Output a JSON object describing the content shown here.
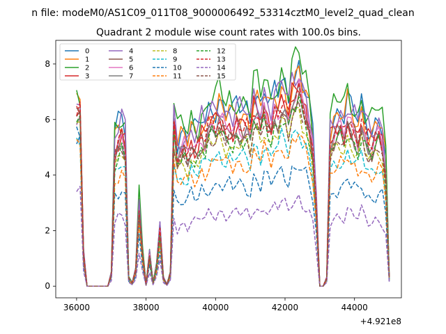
{
  "figure": {
    "suptitle": "n file: modeM0/AS1C09_011T08_9000006492_53314cztM0_level2_quad_clean",
    "title": "Quadrant 2 module wise count rates with 100.0s bins.",
    "offset_label": "+4.921e8"
  },
  "chart_data": {
    "type": "line",
    "xlim": [
      35400,
      45350
    ],
    "ylim": [
      -0.42,
      8.85
    ],
    "xticks": [
      36000,
      38000,
      40000,
      42000,
      44000
    ],
    "xtick_labels": [
      "36000",
      "38000",
      "40000",
      "42000",
      "44000"
    ],
    "yticks": [
      0,
      2,
      4,
      6,
      8
    ],
    "ytick_labels": [
      "0",
      "2",
      "4",
      "6",
      "8"
    ],
    "grid": false,
    "legend": {
      "placement": "top-left",
      "columns": 4
    },
    "x": [
      36000,
      36100,
      36200,
      36300,
      36400,
      36500,
      36600,
      36700,
      36800,
      36900,
      37000,
      37100,
      37200,
      37300,
      37400,
      37500,
      37600,
      37700,
      37800,
      37900,
      38000,
      38100,
      38200,
      38300,
      38400,
      38500,
      38600,
      38700,
      38800,
      38900,
      39000,
      39100,
      39200,
      39300,
      39400,
      39500,
      39600,
      39700,
      39800,
      39900,
      40000,
      40100,
      40200,
      40300,
      40400,
      40500,
      40600,
      40700,
      40800,
      40900,
      41000,
      41100,
      41200,
      41300,
      41400,
      41500,
      41600,
      41700,
      41800,
      41900,
      42000,
      42100,
      42200,
      42300,
      42400,
      42500,
      42600,
      42700,
      42800,
      42900,
      43000,
      43100,
      43200,
      43300,
      43400,
      43500,
      43600,
      43700,
      43800,
      43900,
      44000,
      44100,
      44200,
      44300,
      44400,
      44500,
      44600,
      44700,
      44800,
      44900,
      45000
    ],
    "series": [
      {
        "name": "0",
        "color": "#1f77b4",
        "dash": "solid",
        "level": 6.4,
        "start": 4.9,
        "amp": 0.55,
        "drop": 0.0
      },
      {
        "name": "1",
        "color": "#ff7f0e",
        "dash": "solid",
        "level": 6.2,
        "start": 6.6,
        "amp": 0.6,
        "drop": 0.0
      },
      {
        "name": "2",
        "color": "#2ca02c",
        "dash": "solid",
        "level": 6.7,
        "start": 6.9,
        "amp": 0.65,
        "drop": 0.0
      },
      {
        "name": "3",
        "color": "#d62728",
        "dash": "solid",
        "level": 5.8,
        "start": 6.5,
        "amp": 0.5,
        "drop": 0.0
      },
      {
        "name": "4",
        "color": "#9467bd",
        "dash": "solid",
        "level": 6.3,
        "start": 6.6,
        "amp": 0.55,
        "drop": 0.0
      },
      {
        "name": "5",
        "color": "#8c564b",
        "dash": "solid",
        "level": 5.6,
        "start": 6.2,
        "amp": 0.45,
        "drop": 0.0
      },
      {
        "name": "6",
        "color": "#e377c2",
        "dash": "solid",
        "level": 5.7,
        "start": 6.0,
        "amp": 0.45,
        "drop": 0.0
      },
      {
        "name": "7",
        "color": "#7f7f7f",
        "dash": "solid",
        "level": 5.5,
        "start": 6.0,
        "amp": 0.45,
        "drop": 0.0
      },
      {
        "name": "8",
        "color": "#bcbd22",
        "dash": "dashed",
        "level": 5.1,
        "start": 5.8,
        "amp": 0.4,
        "drop": 0.0
      },
      {
        "name": "9",
        "color": "#17becf",
        "dash": "dashed",
        "level": 4.6,
        "start": 5.0,
        "amp": 0.4,
        "drop": 0.0
      },
      {
        "name": "10",
        "color": "#1f77b4",
        "dash": "dashed",
        "level": 3.6,
        "start": 5.5,
        "amp": 0.4,
        "drop": 0.0
      },
      {
        "name": "11",
        "color": "#ff7f0e",
        "dash": "dashed",
        "level": 4.4,
        "start": 5.4,
        "amp": 0.35,
        "drop": 0.0
      },
      {
        "name": "12",
        "color": "#2ca02c",
        "dash": "dashed",
        "level": 5.3,
        "start": 6.3,
        "amp": 0.4,
        "drop": 0.0
      },
      {
        "name": "13",
        "color": "#d62728",
        "dash": "dashed",
        "level": 5.7,
        "start": 6.4,
        "amp": 0.45,
        "drop": 0.0
      },
      {
        "name": "14",
        "color": "#9467bd",
        "dash": "dashed",
        "level": 2.6,
        "start": 3.3,
        "amp": 0.3,
        "drop": 0.0
      },
      {
        "name": "15",
        "color": "#8c564b",
        "dash": "dashed",
        "level": 5.3,
        "start": 6.1,
        "amp": 0.4,
        "drop": 0.0
      }
    ],
    "profile": [
      1.0,
      1.0,
      0.2,
      0.0,
      0.0,
      0.0,
      0.0,
      0.0,
      0.0,
      0.0,
      0.08,
      0.85,
      0.9,
      0.95,
      0.88,
      0.05,
      0.02,
      0.1,
      0.5,
      0.2,
      0.01,
      0.2,
      0.02,
      0.12,
      0.35,
      0.05,
      0.01,
      0.08,
      1.0,
      0.82,
      0.85,
      0.87,
      0.83,
      0.9,
      0.86,
      0.88,
      0.95,
      0.92,
      1.0,
      1.02,
      1.0,
      1.05,
      1.02,
      0.98,
      1.0,
      0.96,
      1.02,
      1.0,
      0.99,
      1.0,
      0.95,
      1.1,
      1.08,
      1.02,
      1.12,
      1.05,
      1.0,
      1.1,
      1.08,
      1.15,
      1.12,
      1.05,
      1.18,
      1.2,
      1.25,
      1.15,
      1.1,
      1.0,
      0.85,
      0.5,
      0.0,
      0.0,
      0.05,
      0.9,
      0.95,
      0.98,
      1.0,
      0.96,
      1.05,
      1.0,
      0.97,
      0.92,
      1.02,
      0.95,
      0.9,
      0.88,
      0.93,
      0.96,
      0.9,
      0.7,
      0.05
    ]
  }
}
